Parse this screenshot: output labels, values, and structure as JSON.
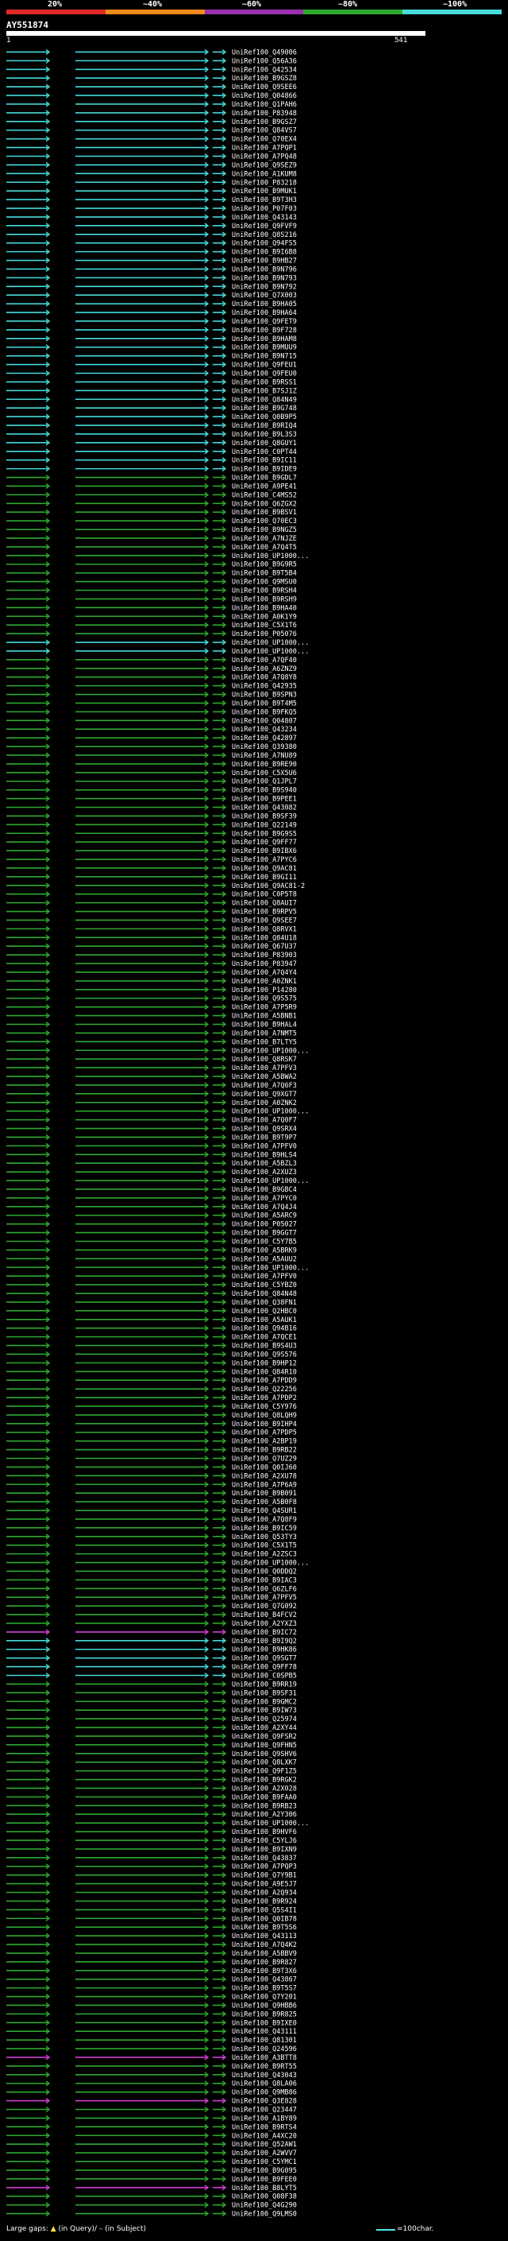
{
  "chart_data": {
    "type": "alignment-overview",
    "query_id": "AY551874",
    "query_start": "1",
    "query_end": "541",
    "identity_scale": [
      "20%",
      "~40%",
      "~60%",
      "~80%",
      "~100%"
    ],
    "identity_colors": [
      "#e02a2a",
      "#ef8a1c",
      "#9b2fb0",
      "#2fa82f",
      "#46dada"
    ],
    "legend_gaps": "Large gaps:",
    "legend_in_query": "(in Query)/",
    "legend_in_subject": "(in Subject)",
    "legend_scale": "=100char.",
    "hits": [
      {
        "id": "UniRef100_Q49006",
        "c": "cyan"
      },
      {
        "id": "UniRef100_Q56A36",
        "c": "cyan"
      },
      {
        "id": "UniRef100_Q42534",
        "c": "cyan"
      },
      {
        "id": "UniRef100_B9GSZ8",
        "c": "cyan"
      },
      {
        "id": "UniRef100_Q9SEE6",
        "c": "cyan"
      },
      {
        "id": "UniRef100_Q04866",
        "c": "cyan"
      },
      {
        "id": "UniRef100_Q1PAH6",
        "c": "cyan"
      },
      {
        "id": "UniRef100_P83948",
        "c": "cyan"
      },
      {
        "id": "UniRef100_B9GSZ7",
        "c": "cyan"
      },
      {
        "id": "UniRef100_Q84VS7",
        "c": "cyan"
      },
      {
        "id": "UniRef100_Q70EX4",
        "c": "cyan"
      },
      {
        "id": "UniRef100_A7PQP1",
        "c": "cyan"
      },
      {
        "id": "UniRef100_A7PQ48",
        "c": "cyan"
      },
      {
        "id": "UniRef100_Q9SEZ9",
        "c": "cyan"
      },
      {
        "id": "UniRef100_A1KUM8",
        "c": "cyan"
      },
      {
        "id": "UniRef100_P83218",
        "c": "cyan"
      },
      {
        "id": "UniRef100_B9MUK1",
        "c": "cyan"
      },
      {
        "id": "UniRef100_B9T3H3",
        "c": "cyan"
      },
      {
        "id": "UniRef100_P07F03",
        "c": "cyan"
      },
      {
        "id": "UniRef100_Q43143",
        "c": "cyan"
      },
      {
        "id": "UniRef100_Q9FVF9",
        "c": "cyan"
      },
      {
        "id": "UniRef100_Q8S216",
        "c": "cyan"
      },
      {
        "id": "UniRef100_Q94FS5",
        "c": "cyan"
      },
      {
        "id": "UniRef100_B9I6B8",
        "c": "cyan"
      },
      {
        "id": "UniRef100_B9HB27",
        "c": "cyan"
      },
      {
        "id": "UniRef100_B9N796",
        "c": "cyan"
      },
      {
        "id": "UniRef100_B9N793",
        "c": "cyan"
      },
      {
        "id": "UniRef100_B9N792",
        "c": "cyan"
      },
      {
        "id": "UniRef100_Q7X003",
        "c": "cyan"
      },
      {
        "id": "UniRef100_B9HA05",
        "c": "cyan"
      },
      {
        "id": "UniRef100_B9HA64",
        "c": "cyan"
      },
      {
        "id": "UniRef100_Q9FET9",
        "c": "cyan"
      },
      {
        "id": "UniRef100_B9F728",
        "c": "cyan"
      },
      {
        "id": "UniRef100_B9HAM8",
        "c": "cyan"
      },
      {
        "id": "UniRef100_B9MUU9",
        "c": "cyan"
      },
      {
        "id": "UniRef100_B9N715",
        "c": "cyan"
      },
      {
        "id": "UniRef100_Q9FEU1",
        "c": "cyan"
      },
      {
        "id": "UniRef100_Q9FEU0",
        "c": "cyan"
      },
      {
        "id": "UniRef100_B9RSS1",
        "c": "cyan"
      },
      {
        "id": "UniRef100_B7SJ1Z",
        "c": "cyan"
      },
      {
        "id": "UniRef100_Q84N49",
        "c": "cyan"
      },
      {
        "id": "UniRef100_B9G748",
        "c": "cyan"
      },
      {
        "id": "UniRef100_Q0B9P5",
        "c": "cyan"
      },
      {
        "id": "UniRef100_B9RIQ4",
        "c": "cyan"
      },
      {
        "id": "UniRef100_B9L3S3",
        "c": "cyan"
      },
      {
        "id": "UniRef100_Q8GUY1",
        "c": "cyan"
      },
      {
        "id": "UniRef100_C0PT44",
        "c": "cyan"
      },
      {
        "id": "UniRef100_B9IC11",
        "c": "cyan"
      },
      {
        "id": "UniRef100_B9IDE9",
        "c": "cyan"
      },
      {
        "id": "UniRef100_B9GDL7",
        "c": "green"
      },
      {
        "id": "UniRef100_A9PE41",
        "c": "green"
      },
      {
        "id": "UniRef100_C4MS52",
        "c": "green"
      },
      {
        "id": "UniRef100_Q6ZGX2",
        "c": "green"
      },
      {
        "id": "UniRef100_B9BSV1",
        "c": "green"
      },
      {
        "id": "UniRef100_Q70EC3",
        "c": "green"
      },
      {
        "id": "UniRef100_B9NGZ5",
        "c": "green"
      },
      {
        "id": "UniRef100_A7NJZE",
        "c": "green"
      },
      {
        "id": "UniRef100_A7Q4T5",
        "c": "green"
      },
      {
        "id": "UniRef100_UP1000...",
        "c": "green"
      },
      {
        "id": "UniRef100_B9G9R5",
        "c": "green"
      },
      {
        "id": "UniRef100_B9T5B4",
        "c": "green"
      },
      {
        "id": "UniRef100_Q9MSU0",
        "c": "green"
      },
      {
        "id": "UniRef100_B9RSH4",
        "c": "green"
      },
      {
        "id": "UniRef100_B9RSH9",
        "c": "green"
      },
      {
        "id": "UniRef100_B9HA40",
        "c": "green"
      },
      {
        "id": "UniRef100_A0K1Y9",
        "c": "green"
      },
      {
        "id": "UniRef100_C5X1T6",
        "c": "green"
      },
      {
        "id": "UniRef100_P05076",
        "c": "green"
      },
      {
        "id": "UniRef100_UP1000...",
        "c": "cyan"
      },
      {
        "id": "UniRef100_UP1000...",
        "c": "cyan"
      },
      {
        "id": "UniRef100_A7QF40",
        "c": "green"
      },
      {
        "id": "UniRef100_A6ZNZ9",
        "c": "green"
      },
      {
        "id": "UniRef100_A7Q8Y8",
        "c": "green"
      },
      {
        "id": "UniRef100_Q42935",
        "c": "green"
      },
      {
        "id": "UniRef100_B9SPN3",
        "c": "green"
      },
      {
        "id": "UniRef100_B9T4M5",
        "c": "green"
      },
      {
        "id": "UniRef100_B9FKQ5",
        "c": "green"
      },
      {
        "id": "UniRef100_Q04807",
        "c": "green"
      },
      {
        "id": "UniRef100_Q43234",
        "c": "green"
      },
      {
        "id": "UniRef100_Q42897",
        "c": "green"
      },
      {
        "id": "UniRef100_Q39380",
        "c": "green"
      },
      {
        "id": "UniRef100_A7NU89",
        "c": "green"
      },
      {
        "id": "UniRef100_B9RE90",
        "c": "green"
      },
      {
        "id": "UniRef100_C5X5U6",
        "c": "green"
      },
      {
        "id": "UniRef100_Q1JPL7",
        "c": "green"
      },
      {
        "id": "UniRef100_B9S940",
        "c": "green"
      },
      {
        "id": "UniRef100_B9PEE1",
        "c": "green"
      },
      {
        "id": "UniRef100_Q43082",
        "c": "green"
      },
      {
        "id": "UniRef100_B9SF39",
        "c": "green"
      },
      {
        "id": "UniRef100_Q22149",
        "c": "green"
      },
      {
        "id": "UniRef100_B9G9S5",
        "c": "green"
      },
      {
        "id": "UniRef100_Q9FF77",
        "c": "green"
      },
      {
        "id": "UniRef100_B9IBX6",
        "c": "green"
      },
      {
        "id": "UniRef100_A7PYC6",
        "c": "green"
      },
      {
        "id": "UniRef100_Q9AC81",
        "c": "green"
      },
      {
        "id": "UniRef100_B9GI11",
        "c": "green"
      },
      {
        "id": "UniRef100_Q9AC81-2",
        "c": "green"
      },
      {
        "id": "UniRef100_C0P5T8",
        "c": "green"
      },
      {
        "id": "UniRef100_Q8AUI7",
        "c": "green"
      },
      {
        "id": "UniRef100_B9RPV5",
        "c": "green"
      },
      {
        "id": "UniRef100_Q9SEE7",
        "c": "green"
      },
      {
        "id": "UniRef100_Q8RVX1",
        "c": "green"
      },
      {
        "id": "UniRef100_Q84U18",
        "c": "green"
      },
      {
        "id": "UniRef100_Q67U37",
        "c": "green"
      },
      {
        "id": "UniRef100_P83903",
        "c": "green"
      },
      {
        "id": "UniRef100_P83947",
        "c": "green"
      },
      {
        "id": "UniRef100_A7Q4Y4",
        "c": "green"
      },
      {
        "id": "UniRef100_A0ZNK1",
        "c": "green"
      },
      {
        "id": "UniRef100_P14280",
        "c": "green"
      },
      {
        "id": "UniRef100_Q9S575",
        "c": "green"
      },
      {
        "id": "UniRef100_A7P5R9",
        "c": "green"
      },
      {
        "id": "UniRef100_A5BNB1",
        "c": "green"
      },
      {
        "id": "UniRef100_B9HAL4",
        "c": "green"
      },
      {
        "id": "UniRef100_A7NMT5",
        "c": "green"
      },
      {
        "id": "UniRef100_B7LTY5",
        "c": "green"
      },
      {
        "id": "UniRef100_UP1000...",
        "c": "green"
      },
      {
        "id": "UniRef100_Q8RSK7",
        "c": "green"
      },
      {
        "id": "UniRef100_A7PFV3",
        "c": "green"
      },
      {
        "id": "UniRef100_A5BWA2",
        "c": "green"
      },
      {
        "id": "UniRef100_A7Q6F3",
        "c": "green"
      },
      {
        "id": "UniRef100_Q9XGT7",
        "c": "green"
      },
      {
        "id": "UniRef100_A0ZNK2",
        "c": "green"
      },
      {
        "id": "UniRef100_UP1000...",
        "c": "green"
      },
      {
        "id": "UniRef100_A7Q0F7",
        "c": "green"
      },
      {
        "id": "UniRef100_Q9SRX4",
        "c": "green"
      },
      {
        "id": "UniRef100_B9T9P7",
        "c": "green"
      },
      {
        "id": "UniRef100_A7PFV0",
        "c": "green"
      },
      {
        "id": "UniRef100_B9HLS4",
        "c": "green"
      },
      {
        "id": "UniRef100_A5BZL3",
        "c": "green"
      },
      {
        "id": "UniRef100_A2XUZ3",
        "c": "green"
      },
      {
        "id": "UniRef100_UP1000...",
        "c": "green"
      },
      {
        "id": "UniRef100_B9GBC4",
        "c": "green"
      },
      {
        "id": "UniRef100_A7PYC0",
        "c": "green"
      },
      {
        "id": "UniRef100_A7Q4J4",
        "c": "green"
      },
      {
        "id": "UniRef100_A5ARC9",
        "c": "green"
      },
      {
        "id": "UniRef100_P05027",
        "c": "green"
      },
      {
        "id": "UniRef100_B9GGT7",
        "c": "green"
      },
      {
        "id": "UniRef100_C5Y7B5",
        "c": "green"
      },
      {
        "id": "UniRef100_A5BRK9",
        "c": "green"
      },
      {
        "id": "UniRef100_A5AUU2",
        "c": "green"
      },
      {
        "id": "UniRef100_UP1000...",
        "c": "green"
      },
      {
        "id": "UniRef100_A7PFV0",
        "c": "green"
      },
      {
        "id": "UniRef100_C5YBZ0",
        "c": "green"
      },
      {
        "id": "UniRef100_Q84N48",
        "c": "green"
      },
      {
        "id": "UniRef100_Q38FN1",
        "c": "green"
      },
      {
        "id": "UniRef100_Q2HBC0",
        "c": "green"
      },
      {
        "id": "UniRef100_A5AUK1",
        "c": "green"
      },
      {
        "id": "UniRef100_Q94B16",
        "c": "green"
      },
      {
        "id": "UniRef100_A7QCE1",
        "c": "green"
      },
      {
        "id": "UniRef100_B9S4U3",
        "c": "green"
      },
      {
        "id": "UniRef100_Q9S576",
        "c": "green"
      },
      {
        "id": "UniRef100_B9HP12",
        "c": "green"
      },
      {
        "id": "UniRef100_Q84R10",
        "c": "green"
      },
      {
        "id": "UniRef100_A7PDD9",
        "c": "green"
      },
      {
        "id": "UniRef100_Q22256",
        "c": "green"
      },
      {
        "id": "UniRef100_A7PDP2",
        "c": "green"
      },
      {
        "id": "UniRef100_C5Y976",
        "c": "green"
      },
      {
        "id": "UniRef100_Q8LQH9",
        "c": "green"
      },
      {
        "id": "UniRef100_B9IHP4",
        "c": "green"
      },
      {
        "id": "UniRef100_A7PDP5",
        "c": "green"
      },
      {
        "id": "UniRef100_A2BP19",
        "c": "green"
      },
      {
        "id": "UniRef100_B9RB22",
        "c": "green"
      },
      {
        "id": "UniRef100_Q7UZ29",
        "c": "green"
      },
      {
        "id": "UniRef100_Q0IJ60",
        "c": "green"
      },
      {
        "id": "UniRef100_A2XU78",
        "c": "green"
      },
      {
        "id": "UniRef100_A7P6A9",
        "c": "green"
      },
      {
        "id": "UniRef100_B9B091",
        "c": "green"
      },
      {
        "id": "UniRef100_A5B0F8",
        "c": "green"
      },
      {
        "id": "UniRef100_Q4SUR1",
        "c": "green"
      },
      {
        "id": "UniRef100_A7Q8F9",
        "c": "green"
      },
      {
        "id": "UniRef100_B9IC59",
        "c": "green"
      },
      {
        "id": "UniRef100_Q53TY3",
        "c": "green"
      },
      {
        "id": "UniRef100_C5X1T5",
        "c": "green"
      },
      {
        "id": "UniRef100_A2ZSC3",
        "c": "green"
      },
      {
        "id": "UniRef100_UP1000...",
        "c": "green"
      },
      {
        "id": "UniRef100_Q0DDQ2",
        "c": "green"
      },
      {
        "id": "UniRef100_B9IAC3",
        "c": "green"
      },
      {
        "id": "UniRef100_Q6ZLF6",
        "c": "green"
      },
      {
        "id": "UniRef100_A7PFV5",
        "c": "green"
      },
      {
        "id": "UniRef100_Q7G092",
        "c": "green"
      },
      {
        "id": "UniRef100_B4FCV2",
        "c": "green"
      },
      {
        "id": "UniRef100_A2YXZ3",
        "c": "green"
      },
      {
        "id": "UniRef100_B9IC72",
        "c": "magenta"
      },
      {
        "id": "UniRef100_B9I9Q2",
        "c": "cyan"
      },
      {
        "id": "UniRef100_B9HK86",
        "c": "cyan"
      },
      {
        "id": "UniRef100_Q9SGT7",
        "c": "cyan"
      },
      {
        "id": "UniRef100_Q9FF78",
        "c": "cyan"
      },
      {
        "id": "UniRef100_C0SPB5",
        "c": "cyan"
      },
      {
        "id": "UniRef100_B9RR19",
        "c": "green"
      },
      {
        "id": "UniRef100_B9SF31",
        "c": "green"
      },
      {
        "id": "UniRef100_B9GMC2",
        "c": "green"
      },
      {
        "id": "UniRef100_B9IW73",
        "c": "green"
      },
      {
        "id": "UniRef100_Q25974",
        "c": "green"
      },
      {
        "id": "UniRef100_A2XY44",
        "c": "green"
      },
      {
        "id": "UniRef100_Q9FSR2",
        "c": "green"
      },
      {
        "id": "UniRef100_Q9FHN5",
        "c": "green"
      },
      {
        "id": "UniRef100_Q9SHV6",
        "c": "green"
      },
      {
        "id": "UniRef100_Q8LXK7",
        "c": "green"
      },
      {
        "id": "UniRef100_Q9F1Z5",
        "c": "green"
      },
      {
        "id": "UniRef100_B9RGK2",
        "c": "green"
      },
      {
        "id": "UniRef100_A2X028",
        "c": "green"
      },
      {
        "id": "UniRef100_B9FAA0",
        "c": "green"
      },
      {
        "id": "UniRef100_B9RB23",
        "c": "green"
      },
      {
        "id": "UniRef100_A2Y306",
        "c": "green"
      },
      {
        "id": "UniRef100_UP1000...",
        "c": "green"
      },
      {
        "id": "UniRef100_B9HVF6",
        "c": "green"
      },
      {
        "id": "UniRef100_C5YLJ6",
        "c": "green"
      },
      {
        "id": "UniRef100_B9IXN9",
        "c": "green"
      },
      {
        "id": "UniRef100_Q43837",
        "c": "green"
      },
      {
        "id": "UniRef100_A7PQP3",
        "c": "green"
      },
      {
        "id": "UniRef100_Q7Y9B1",
        "c": "green"
      },
      {
        "id": "UniRef100_A9E5J7",
        "c": "green"
      },
      {
        "id": "UniRef100_A2Q934",
        "c": "green"
      },
      {
        "id": "UniRef100_B9R924",
        "c": "green"
      },
      {
        "id": "UniRef100_Q5S4I1",
        "c": "green"
      },
      {
        "id": "UniRef100_Q0IB78",
        "c": "green"
      },
      {
        "id": "UniRef100_B9T5S6",
        "c": "green"
      },
      {
        "id": "UniRef100_Q43113",
        "c": "green"
      },
      {
        "id": "UniRef100_A7Q4K2",
        "c": "green"
      },
      {
        "id": "UniRef100_A5BBV9",
        "c": "green"
      },
      {
        "id": "UniRef100_B9R827",
        "c": "green"
      },
      {
        "id": "UniRef100_B9T3X6",
        "c": "green"
      },
      {
        "id": "UniRef100_Q43867",
        "c": "green"
      },
      {
        "id": "UniRef100_B9T5S7",
        "c": "green"
      },
      {
        "id": "UniRef100_Q7Y201",
        "c": "green"
      },
      {
        "id": "UniRef100_Q9HBB6",
        "c": "green"
      },
      {
        "id": "UniRef100_B9R825",
        "c": "green"
      },
      {
        "id": "UniRef100_B9IXE0",
        "c": "green"
      },
      {
        "id": "UniRef100_Q43111",
        "c": "green"
      },
      {
        "id": "UniRef100_Q81301",
        "c": "green"
      },
      {
        "id": "UniRef100_Q24596",
        "c": "green"
      },
      {
        "id": "UniRef100_A3BTT8",
        "c": "magenta"
      },
      {
        "id": "UniRef100_B9RT55",
        "c": "green"
      },
      {
        "id": "UniRef100_Q43043",
        "c": "green"
      },
      {
        "id": "UniRef100_Q8LA06",
        "c": "green"
      },
      {
        "id": "UniRef100_Q9MB86",
        "c": "green"
      },
      {
        "id": "UniRef100_Q3E828",
        "c": "magenta"
      },
      {
        "id": "UniRef100_Q23447",
        "c": "green"
      },
      {
        "id": "UniRef100_A1BY89",
        "c": "green"
      },
      {
        "id": "UniRef100_B9RTS4",
        "c": "green"
      },
      {
        "id": "UniRef100_A4XC20",
        "c": "green"
      },
      {
        "id": "UniRef100_Q52AW1",
        "c": "green"
      },
      {
        "id": "UniRef100_A2WVV7",
        "c": "green"
      },
      {
        "id": "UniRef100_C5YMC1",
        "c": "green"
      },
      {
        "id": "UniRef100_B9G095",
        "c": "green"
      },
      {
        "id": "UniRef100_B9FEE0",
        "c": "green"
      },
      {
        "id": "UniRef100_B8LYT5",
        "c": "magenta"
      },
      {
        "id": "UniRef100_Q08F38",
        "c": "green"
      },
      {
        "id": "UniRef100_Q4G290",
        "c": "green"
      },
      {
        "id": "UniRef100_Q9LMS0",
        "c": "green"
      }
    ]
  }
}
